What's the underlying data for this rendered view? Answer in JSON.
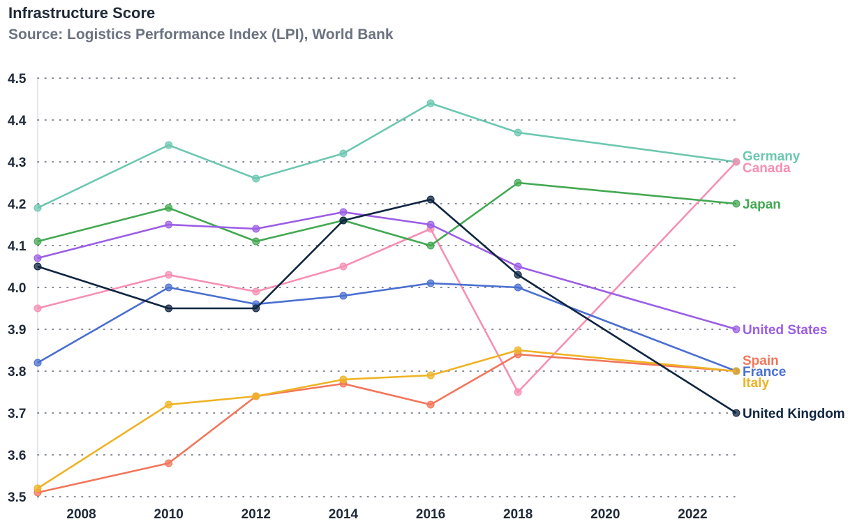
{
  "chart_data": {
    "type": "line",
    "title": "Infrastructure Score",
    "subtitle": "Source: Logistics Performance Index (LPI), World Bank",
    "xlabel": "",
    "ylabel": "",
    "xlim": [
      2007,
      2023
    ],
    "ylim": [
      3.5,
      4.5
    ],
    "x_ticks": [
      2008,
      2010,
      2012,
      2014,
      2016,
      2018,
      2020,
      2022
    ],
    "y_ticks": [
      "3.5",
      "3.6",
      "3.7",
      "3.8",
      "3.9",
      "4.0",
      "4.1",
      "4.2",
      "4.3",
      "4.4",
      "4.5"
    ],
    "grid": "horizontal-dotted",
    "legend": "end-of-line labels",
    "x": [
      2007,
      2010,
      2012,
      2014,
      2016,
      2018,
      2023
    ],
    "series": [
      {
        "name": "Germany",
        "color": "#6cc7b0",
        "label_dy": -9,
        "values": [
          4.19,
          4.34,
          4.26,
          4.32,
          4.44,
          4.37,
          4.3
        ]
      },
      {
        "name": "Canada",
        "color": "#f78fb3",
        "label_dy": 8,
        "values": [
          3.95,
          4.03,
          3.99,
          4.05,
          4.14,
          3.75,
          4.3
        ]
      },
      {
        "name": "Japan",
        "color": "#43a852",
        "label_dy": 0,
        "values": [
          4.11,
          4.19,
          4.11,
          4.16,
          4.1,
          4.25,
          4.2
        ]
      },
      {
        "name": "United States",
        "color": "#9b5de5",
        "label_dy": 0,
        "values": [
          4.07,
          4.15,
          4.14,
          4.18,
          4.15,
          4.05,
          3.9
        ]
      },
      {
        "name": "Spain",
        "color": "#f2765a",
        "label_dy": -16,
        "values": [
          3.51,
          3.58,
          3.74,
          3.77,
          3.72,
          3.84,
          3.8
        ]
      },
      {
        "name": "France",
        "color": "#4a6fd0",
        "label_dy": 0,
        "values": [
          3.82,
          4.0,
          3.96,
          3.98,
          4.01,
          4.0,
          3.8
        ]
      },
      {
        "name": "Italy",
        "color": "#eeb325",
        "label_dy": 16,
        "values": [
          3.52,
          3.72,
          3.74,
          3.78,
          3.79,
          3.85,
          3.8
        ]
      },
      {
        "name": "United Kingdom",
        "color": "#0f2540",
        "label_dy": 0,
        "values": [
          4.05,
          3.95,
          3.95,
          4.16,
          4.21,
          4.03,
          3.7
        ]
      }
    ]
  }
}
